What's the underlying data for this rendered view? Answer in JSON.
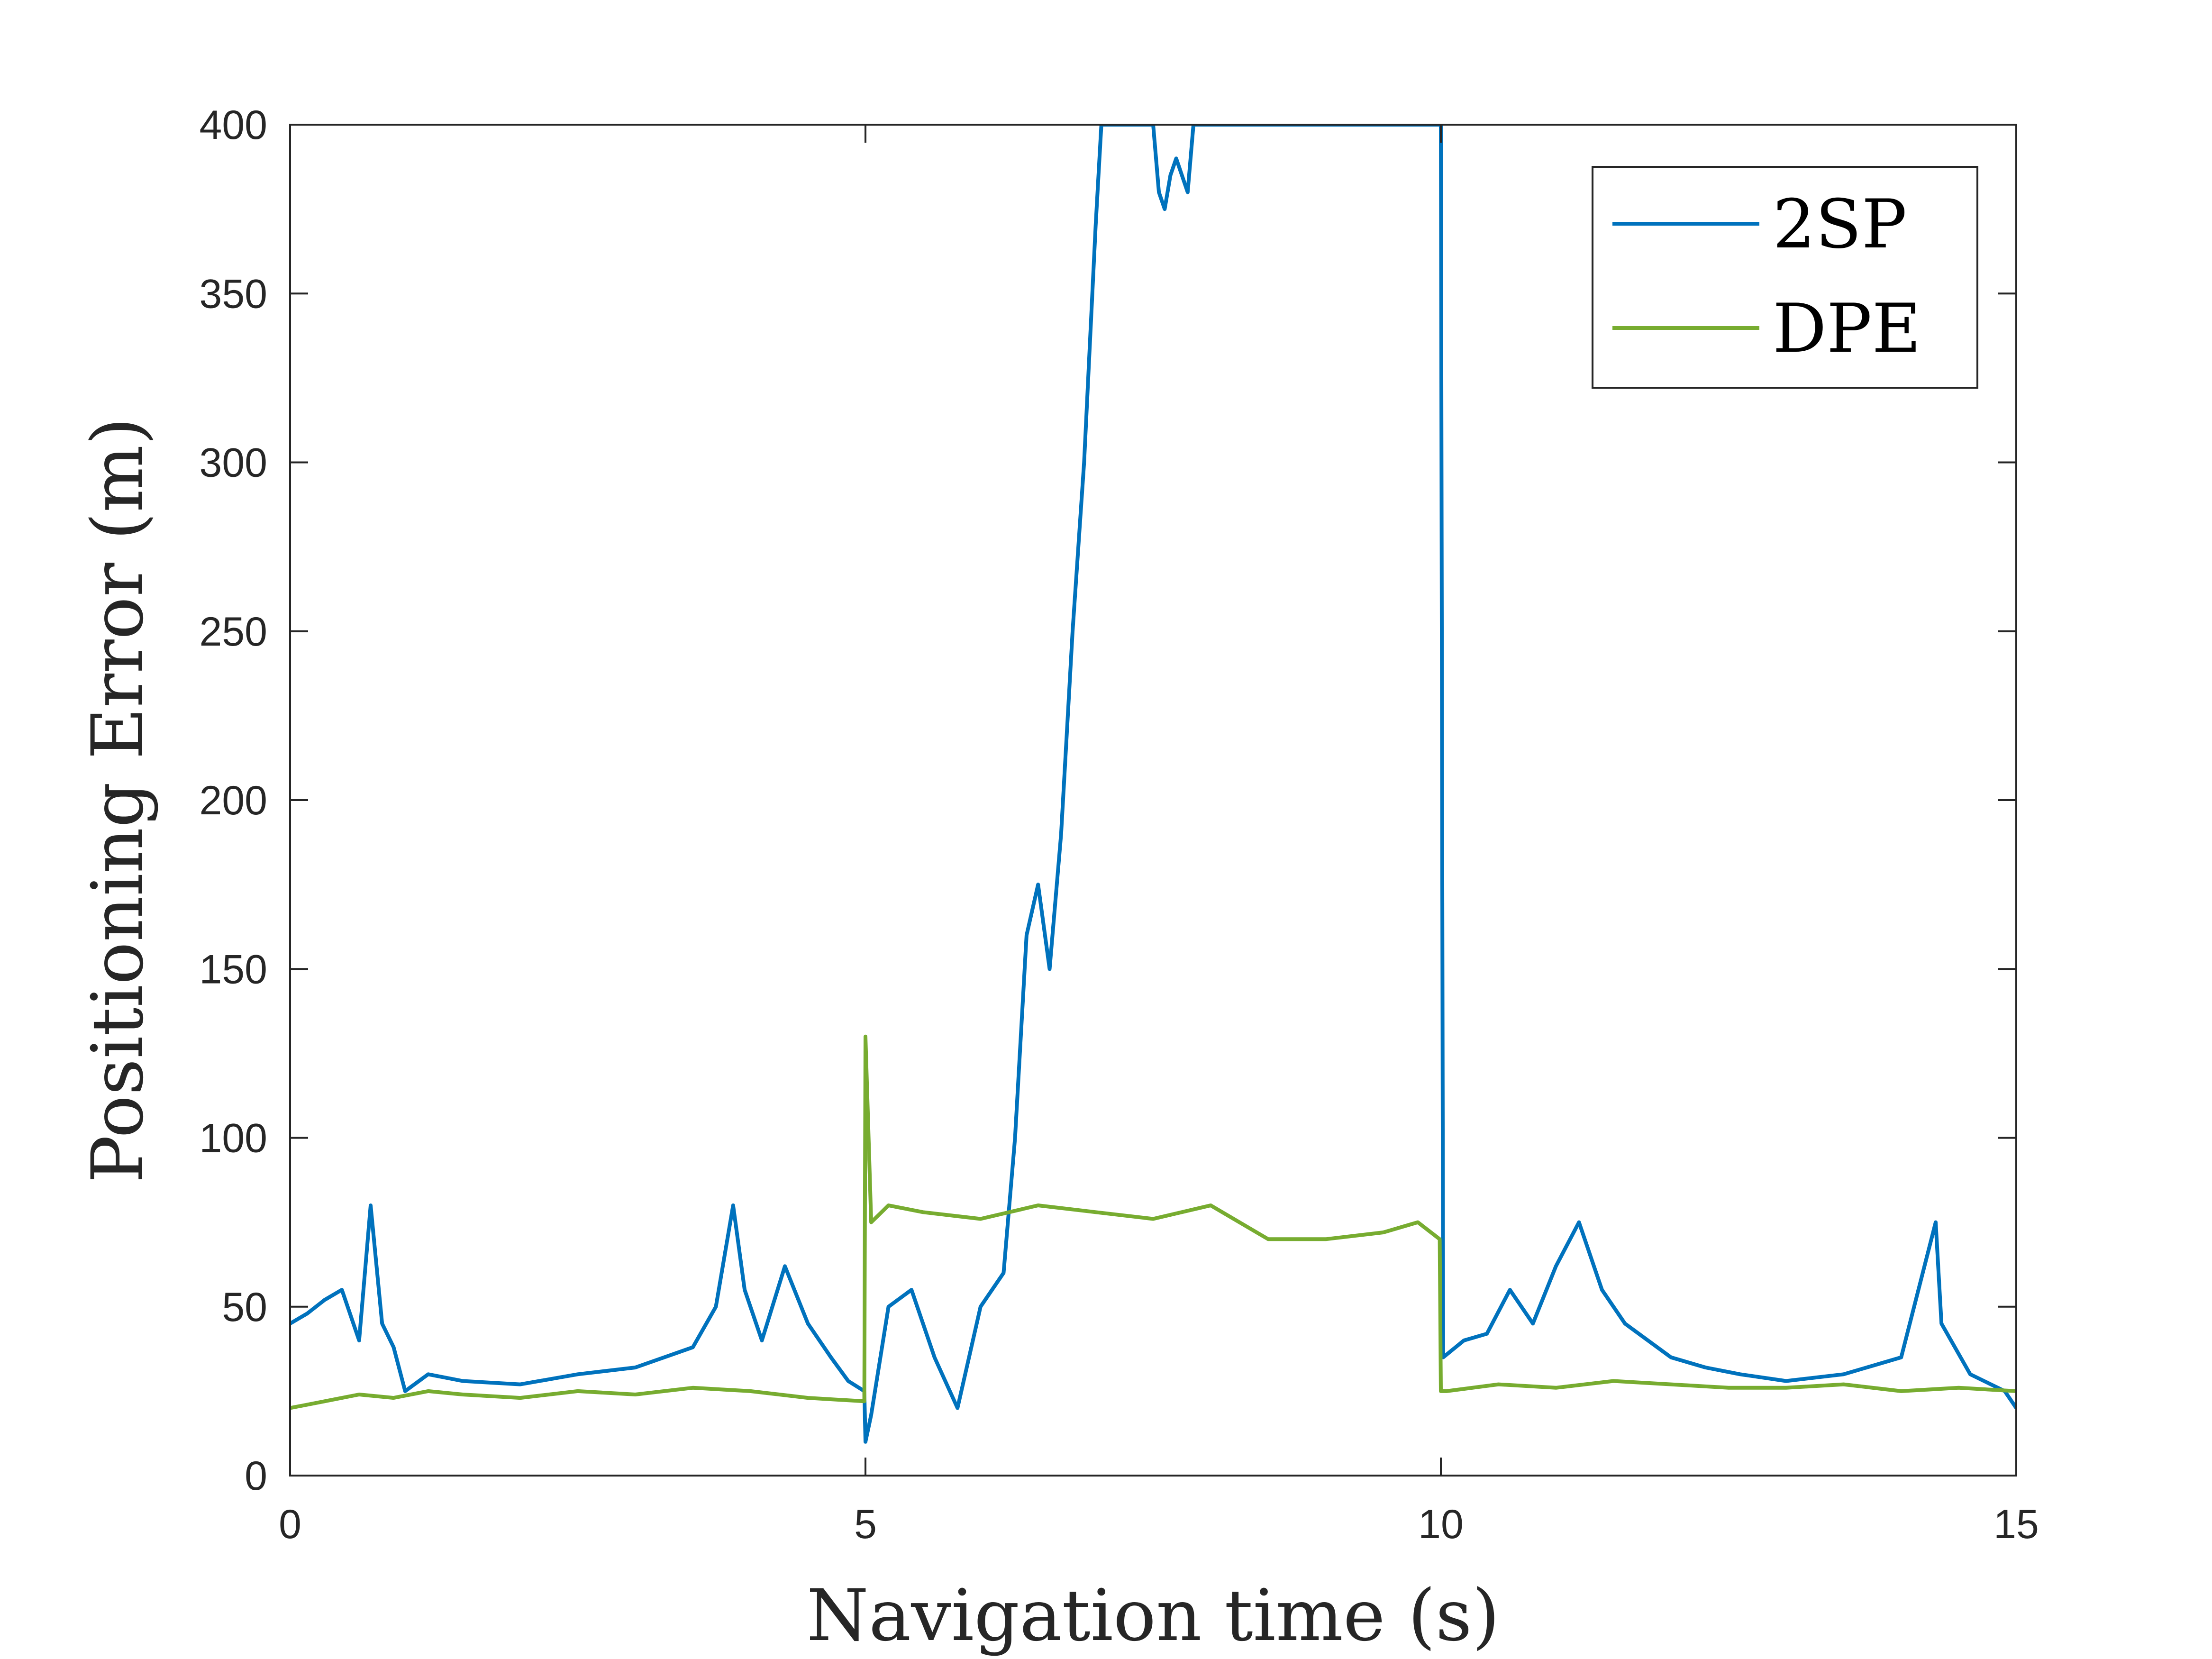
{
  "chart_data": {
    "type": "line",
    "xlabel": "Navigation time (s)",
    "ylabel": "Positioning Error (m)",
    "xlim": [
      0,
      15
    ],
    "ylim": [
      0,
      400
    ],
    "x_ticks": [
      0,
      5,
      10,
      15
    ],
    "y_ticks": [
      0,
      50,
      100,
      150,
      200,
      250,
      300,
      350,
      400
    ],
    "x_tick_labels": [
      "0",
      "5",
      "10",
      "15"
    ],
    "y_tick_labels": [
      "0",
      "50",
      "100",
      "150",
      "200",
      "250",
      "300",
      "350",
      "400"
    ],
    "grid": false,
    "legend_position": "top-right",
    "colors": {
      "2SP": "#0072BD",
      "DPE": "#77AC30",
      "axes": "#262626"
    },
    "series": [
      {
        "name": "2SP",
        "color": "#0072BD",
        "x": [
          0,
          0.15,
          0.3,
          0.45,
          0.6,
          0.7,
          0.8,
          0.9,
          1.0,
          1.2,
          1.5,
          2.0,
          2.5,
          3.0,
          3.5,
          3.7,
          3.85,
          3.95,
          4.1,
          4.3,
          4.5,
          4.7,
          4.85,
          4.99,
          5.0,
          5.05,
          5.2,
          5.4,
          5.6,
          5.8,
          6.0,
          6.2,
          6.3,
          6.4,
          6.5,
          6.6,
          6.7,
          6.8,
          6.9,
          7.0,
          7.05,
          7.5,
          7.55,
          7.6,
          7.65,
          7.7,
          7.8,
          7.85,
          9.97,
          10.0,
          10.02,
          10.2,
          10.4,
          10.6,
          10.8,
          11.0,
          11.2,
          11.4,
          11.6,
          11.8,
          12.0,
          12.3,
          12.6,
          13.0,
          13.5,
          14.0,
          14.3,
          14.35,
          14.6,
          14.9,
          15.0
        ],
        "y": [
          45,
          48,
          52,
          55,
          40,
          80,
          45,
          38,
          25,
          30,
          28,
          27,
          30,
          32,
          38,
          50,
          80,
          55,
          40,
          62,
          45,
          35,
          28,
          25,
          10,
          18,
          50,
          55,
          35,
          20,
          50,
          60,
          100,
          160,
          175,
          150,
          190,
          250,
          300,
          370,
          400,
          400,
          380,
          375,
          385,
          390,
          380,
          400,
          400,
          400,
          35,
          40,
          42,
          55,
          45,
          62,
          75,
          55,
          45,
          40,
          35,
          32,
          30,
          28,
          30,
          35,
          75,
          45,
          30,
          25,
          20
        ]
      },
      {
        "name": "DPE",
        "color": "#77AC30",
        "x": [
          0,
          0.3,
          0.6,
          0.9,
          1.2,
          1.5,
          2.0,
          2.5,
          3.0,
          3.5,
          4.0,
          4.5,
          4.99,
          5.0,
          5.05,
          5.2,
          5.5,
          6.0,
          6.5,
          7.0,
          7.5,
          8.0,
          8.5,
          9.0,
          9.5,
          9.8,
          9.99,
          10.0,
          10.05,
          10.5,
          11.0,
          11.5,
          12.0,
          12.5,
          13.0,
          13.5,
          14.0,
          14.5,
          15.0
        ],
        "y": [
          20,
          22,
          24,
          23,
          25,
          24,
          23,
          25,
          24,
          26,
          25,
          23,
          22,
          130,
          75,
          80,
          78,
          76,
          80,
          78,
          76,
          80,
          70,
          70,
          72,
          75,
          70,
          25,
          25,
          27,
          26,
          28,
          27,
          26,
          26,
          27,
          25,
          26,
          25
        ]
      }
    ]
  }
}
